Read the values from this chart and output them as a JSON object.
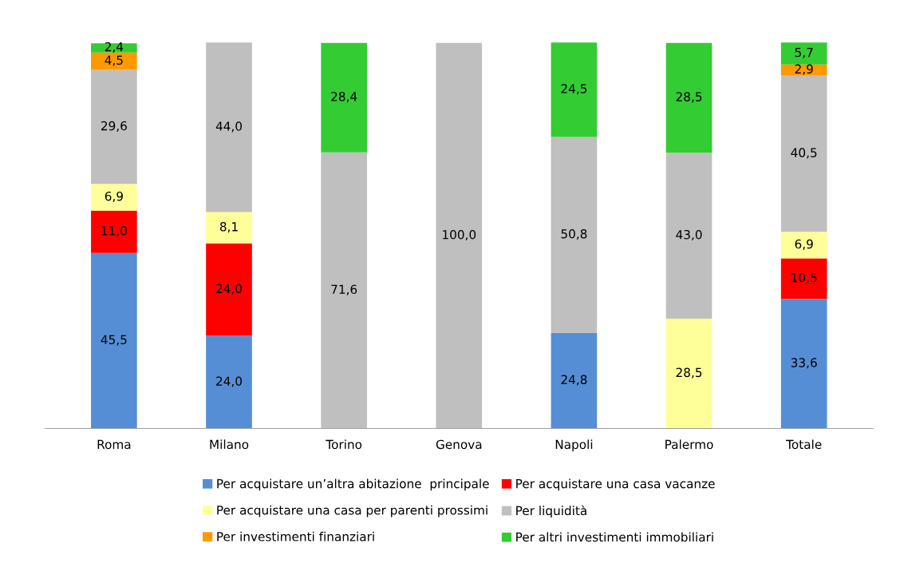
{
  "chart_data": {
    "type": "bar",
    "stacked": true,
    "legend": "bottom",
    "grid": false,
    "categories": [
      "Roma",
      "Milano",
      "Torino",
      "Genova",
      "Napoli",
      "Palermo",
      "Totale"
    ],
    "series": [
      {
        "name": "Per acquistare un’altra abitazione  principale",
        "color": "#558ed5",
        "values": [
          45.5,
          24.0,
          null,
          null,
          24.8,
          null,
          33.6
        ],
        "value_labels": [
          "45,5",
          "24,0",
          null,
          null,
          "24,8",
          null,
          "33,6"
        ]
      },
      {
        "name": "Per acquistare una casa vacanze",
        "color": "#ff0000",
        "values": [
          11.0,
          24.0,
          null,
          null,
          null,
          null,
          10.5
        ],
        "value_labels": [
          "11,0",
          "24,0",
          null,
          null,
          null,
          null,
          "10,5"
        ]
      },
      {
        "name": "Per acquistare una casa per parenti prossimi",
        "color": "#ffff99",
        "values": [
          6.9,
          8.1,
          null,
          null,
          null,
          28.5,
          6.9
        ],
        "value_labels": [
          "6,9",
          "8,1",
          null,
          null,
          null,
          "28,5",
          "6,9"
        ]
      },
      {
        "name": "Per liquidità",
        "color": "#bfbfbf",
        "values": [
          29.6,
          44.0,
          71.6,
          100.0,
          50.8,
          43.0,
          40.5
        ],
        "value_labels": [
          "29,6",
          "44,0",
          "71,6",
          "100,0",
          "50,8",
          "43,0",
          "40,5"
        ]
      },
      {
        "name": "Per investimenti finanziari",
        "color": "#ff9900",
        "values": [
          4.5,
          null,
          null,
          null,
          null,
          null,
          2.9
        ],
        "value_labels": [
          "4,5",
          null,
          null,
          null,
          null,
          null,
          "2,9"
        ]
      },
      {
        "name": "Per altri investimenti immobiliari",
        "color": "#33cc33",
        "values": [
          2.4,
          null,
          28.4,
          null,
          24.5,
          28.5,
          5.7
        ],
        "value_labels": [
          "2,4",
          null,
          "28,4",
          null,
          "24,5",
          "28,5",
          "5,7"
        ]
      }
    ]
  }
}
